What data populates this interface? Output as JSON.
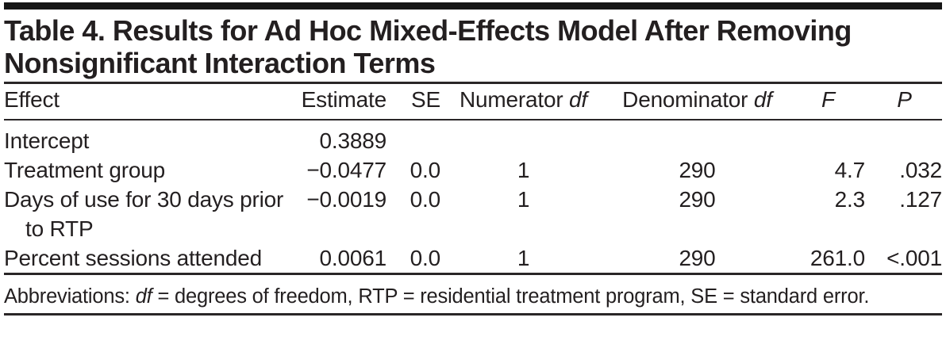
{
  "colors": {
    "text": "#231f20",
    "rule": "#2a2627",
    "top_bar": "#161616",
    "background": "#ffffff"
  },
  "table": {
    "title": "Table 4. Results for Ad Hoc Mixed-Effects Model After Removing Nonsignificant Interaction Terms",
    "columns": [
      {
        "key": "effect",
        "text": "Effect"
      },
      {
        "key": "estimate",
        "text": "Estimate"
      },
      {
        "key": "se",
        "text": "SE"
      },
      {
        "key": "numerator_df",
        "text": "Numerator",
        "italic": "df"
      },
      {
        "key": "denominator_df",
        "text": "Denominator",
        "italic": "df"
      },
      {
        "key": "f",
        "italic": "F"
      },
      {
        "key": "p",
        "italic": "P"
      }
    ],
    "rows": [
      {
        "effect": "Intercept",
        "estimate": "0.3889",
        "se": "",
        "numerator_df": "",
        "denominator_df": "",
        "f": "",
        "p": ""
      },
      {
        "effect": "Treatment group",
        "estimate": "−0.0477",
        "se": "0.0",
        "numerator_df": "1",
        "denominator_df": "290",
        "f": "4.7",
        "p": ".032"
      },
      {
        "effect": "Days of use for 30 days prior to RTP",
        "estimate": "−0.0019",
        "se": "0.0",
        "numerator_df": "1",
        "denominator_df": "290",
        "f": "2.3",
        "p": ".127"
      },
      {
        "effect": "Percent sessions attended",
        "estimate": "0.0061",
        "se": "0.0",
        "numerator_df": "1",
        "denominator_df": "290",
        "f": "261.0",
        "p": "<.001"
      }
    ],
    "footnote_parts": [
      {
        "text": "Abbreviations: "
      },
      {
        "text": "df",
        "italic": true
      },
      {
        "text": " = degrees of freedom, RTP = residential treatment program, SE = standard error."
      }
    ]
  }
}
